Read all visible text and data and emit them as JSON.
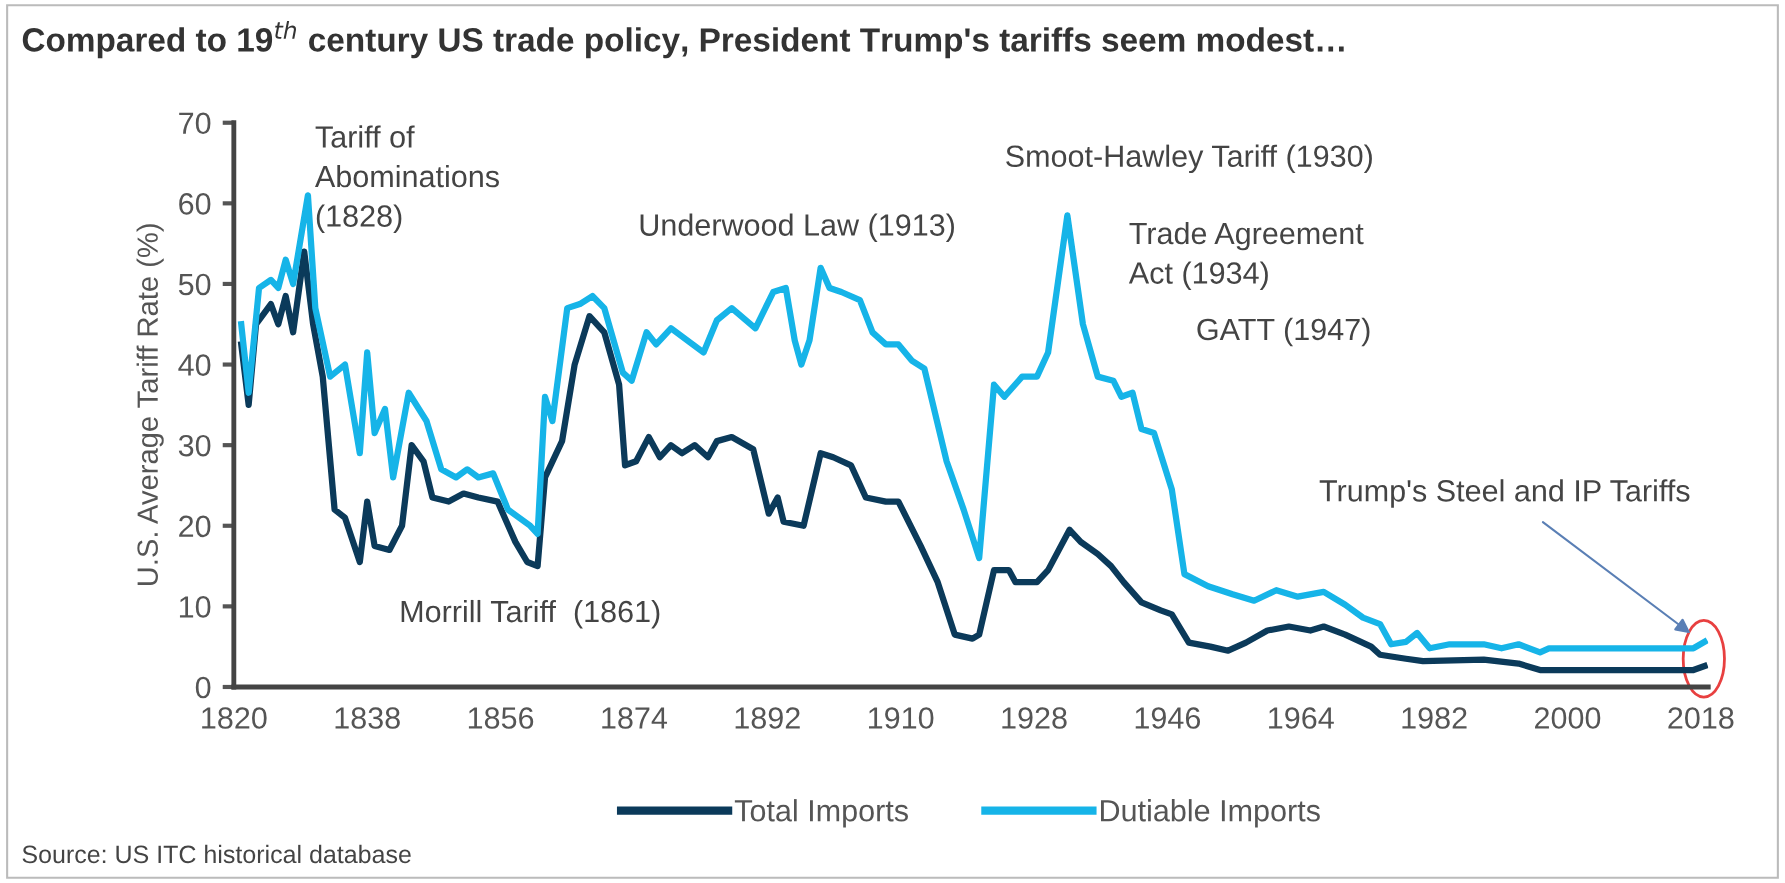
{
  "chart_data": {
    "type": "line",
    "title": "Compared to 19$^{th}$ century US trade policy, President Trump's tariffs seem modest…",
    "ylabel": "U.S. Average Tariff Rate (%)",
    "xlim": [
      1820,
      2019
    ],
    "xticks": [
      1820,
      1838,
      1856,
      1874,
      1892,
      1910,
      1928,
      1946,
      1964,
      1982,
      2000,
      2018
    ],
    "ylim": [
      0,
      70
    ],
    "yticks": [
      0,
      10,
      20,
      30,
      40,
      50,
      60,
      70
    ],
    "grid": false,
    "legend": "bottom",
    "marker": "none",
    "line_style": "solid",
    "series": [
      {
        "name": "Total Imports",
        "color": "#0b3a5a",
        "x": [
          1821,
          1822,
          1823,
          1825,
          1826,
          1827,
          1828,
          1829.5,
          1830.7,
          1832,
          1833.6,
          1835,
          1837,
          1838,
          1839,
          1841,
          1842.7,
          1844,
          1845.6,
          1846.8,
          1849,
          1851,
          1853,
          1855.6,
          1858,
          1859.6,
          1861,
          1862,
          1864.3,
          1866,
          1868,
          1870,
          1872,
          1872.8,
          1874.3,
          1876,
          1877.5,
          1879,
          1880.5,
          1882.2,
          1884,
          1885.2,
          1887.2,
          1890.1,
          1892.2,
          1893.4,
          1894.2,
          1896.9,
          1899.2,
          1900.9,
          1903.3,
          1905.3,
          1908,
          1909.7,
          1912.7,
          1915,
          1917.3,
          1919.7,
          1920.6,
          1922.6,
          1924.6,
          1925.5,
          1928.4,
          1929.9,
          1932.8,
          1934.3,
          1936.6,
          1938.4,
          1940.1,
          1942.5,
          1945.1,
          1946.6,
          1948.9,
          1951.8,
          1954.2,
          1956.6,
          1959.5,
          1962.4,
          1965.3,
          1967.1,
          1970,
          1973.5,
          1974.7,
          1978.2,
          1980.5,
          1988.7,
          1993.4,
          1996.3,
          2017,
          2018.5
        ],
        "values": [
          42.5,
          35,
          45,
          47.5,
          45,
          48.5,
          44,
          54,
          45,
          38.5,
          22,
          21,
          15.5,
          23,
          17.5,
          17,
          20,
          30,
          28,
          23.5,
          23,
          24,
          23.5,
          23,
          18,
          15.5,
          15,
          26,
          30.5,
          40,
          46,
          44,
          37.5,
          27.5,
          28,
          31,
          28.5,
          30,
          29,
          30,
          28.5,
          30.5,
          31,
          29.5,
          21.5,
          23.5,
          20.5,
          20,
          29,
          28.5,
          27.5,
          23.5,
          23,
          23,
          17.5,
          13,
          6.5,
          6,
          6.5,
          14.5,
          14.5,
          13,
          13,
          14.5,
          19.5,
          18,
          16.5,
          15,
          13,
          10.5,
          9.5,
          9,
          5.5,
          5,
          4.5,
          5.5,
          7,
          7.5,
          7,
          7.5,
          6.5,
          5,
          4,
          3.5,
          3.2,
          3.4,
          2.9,
          2.1,
          2.1,
          2.6
        ]
      },
      {
        "name": "Dutiable Imports",
        "color": "#16b4e8",
        "x": [
          1821,
          1822,
          1823.4,
          1825,
          1826,
          1827,
          1828,
          1830,
          1831,
          1833,
          1835,
          1837,
          1838,
          1839,
          1840.4,
          1841.5,
          1843.6,
          1846,
          1848,
          1850,
          1851.5,
          1853,
          1855,
          1857,
          1860,
          1861,
          1862,
          1863,
          1865,
          1866.7,
          1868.4,
          1870,
          1872.5,
          1873.7,
          1875.7,
          1877,
          1879,
          1883.4,
          1885.2,
          1887.2,
          1890.4,
          1892.8,
          1894.5,
          1895.7,
          1896.6,
          1897.7,
          1899.2,
          1900.4,
          1902,
          1904.5,
          1906.2,
          1908,
          1909.7,
          1911.5,
          1913.2,
          1916.2,
          1918.5,
          1920.6,
          1922.6,
          1924,
          1926.4,
          1928.4,
          1929.9,
          1932.5,
          1934.6,
          1936.6,
          1938.7,
          1939.8,
          1941.3,
          1942.5,
          1944.2,
          1946.6,
          1948.3,
          1951.5,
          1954.8,
          1957.7,
          1960.7,
          1963.6,
          1967.1,
          1970,
          1972.4,
          1974.7,
          1976.2,
          1978.2,
          1979.7,
          1981.4,
          1984.1,
          1988.7,
          1991.1,
          1993.4,
          1996.3,
          1997.5,
          2006.3,
          2017,
          2018.5
        ],
        "values": [
          45,
          36.5,
          49.5,
          50.5,
          49.5,
          53,
          50,
          61,
          47,
          38.5,
          40,
          29,
          41.5,
          31.5,
          34.5,
          26,
          36.5,
          33,
          27,
          26,
          27,
          26,
          26.5,
          22,
          20,
          19,
          36,
          33,
          47,
          47.5,
          48.5,
          47,
          39,
          38,
          44,
          42.5,
          44.5,
          41.5,
          45.5,
          47,
          44.5,
          49,
          49.5,
          43,
          40,
          43,
          52,
          49.5,
          49,
          48,
          44,
          42.5,
          42.5,
          40.5,
          39.5,
          28,
          22,
          16,
          37.5,
          36,
          38.5,
          38.5,
          41.5,
          58.5,
          45,
          38.5,
          38,
          36,
          36.5,
          32,
          31.5,
          24.5,
          14,
          12.5,
          11.5,
          10.7,
          12,
          11.2,
          11.8,
          10.2,
          8.6,
          7.8,
          5.3,
          5.6,
          6.7,
          4.8,
          5.3,
          5.3,
          4.8,
          5.3,
          4.3,
          4.8,
          4.8,
          4.8,
          5.6
        ]
      }
    ],
    "annotations": [
      "Tariff of\nAbominations\n(1828)",
      "Underwood Law (1913)",
      "Smoot-Hawley Tariff (1930)",
      "Trade Agreement\nAct (1934)",
      "GATT (1947)",
      "Morrill Tariff  (1861)",
      "Trump's Steel and IP Tariffs",
      "Source: US ITC historical database"
    ]
  }
}
